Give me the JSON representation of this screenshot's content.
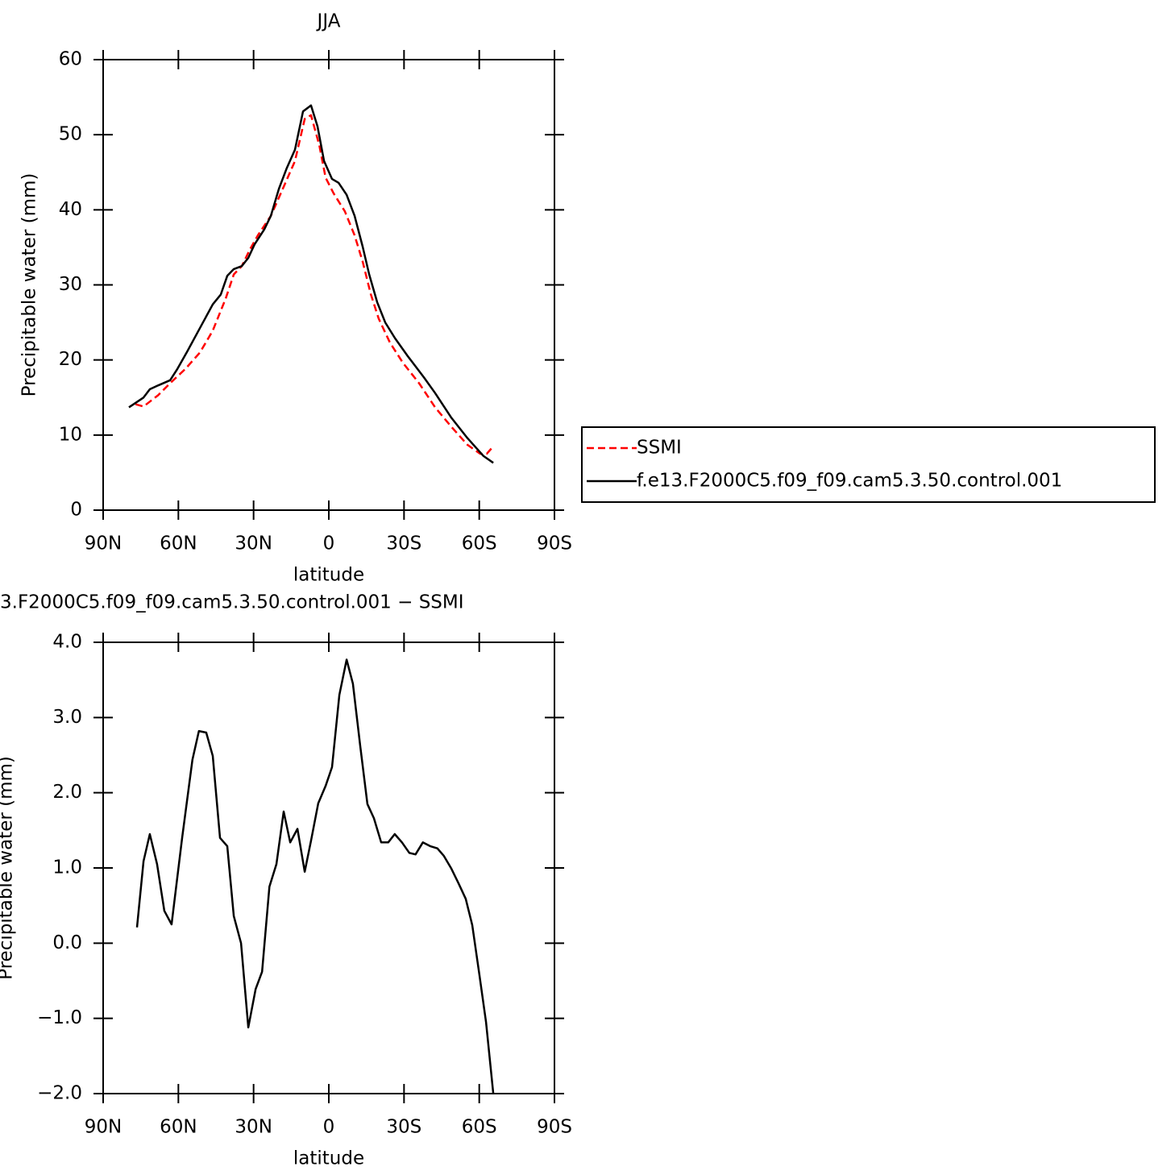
{
  "chart_data": [
    {
      "type": "line",
      "title": "JJA",
      "xlabel": "latitude",
      "ylabel": "Precipitable water (mm)",
      "xlim": [
        90,
        -90
      ],
      "xticks": [
        {
          "value": 90,
          "label": "90N"
        },
        {
          "value": 60,
          "label": "60N"
        },
        {
          "value": 30,
          "label": "30N"
        },
        0,
        {
          "value": -30,
          "label": "30S"
        },
        {
          "value": -60,
          "label": "60S"
        },
        {
          "value": -90,
          "label": "90S"
        }
      ],
      "ylim": [
        0,
        60
      ],
      "yticks": [
        0,
        10,
        20,
        30,
        40,
        50,
        60
      ],
      "legend": "right",
      "series": [
        {
          "name": "SSMI",
          "color": "#ff0000",
          "dash": "dashed",
          "x": [
            77.1,
            73.9,
            68.1,
            63.3,
            57.2,
            51.4,
            46.3,
            41.1,
            37.9,
            34.7,
            31.5,
            28.3,
            23.1,
            18.6,
            13.5,
            9.6,
            7.1,
            3.8,
            1.3,
            -1.9,
            -6.4,
            -10.3,
            -13.5,
            -16.7,
            -19.9,
            -24.4,
            -29.6,
            -36.0,
            -42.4,
            -48.9,
            -55.3,
            -60.4,
            -63.0,
            -65.6
          ],
          "values": [
            14.1,
            13.8,
            15.3,
            16.9,
            18.8,
            21.0,
            23.9,
            28.2,
            31.4,
            32.5,
            34.7,
            36.6,
            39.2,
            42.6,
            46.5,
            52.1,
            52.6,
            48.6,
            44.3,
            42.2,
            39.8,
            36.6,
            33.1,
            28.8,
            25.5,
            22.3,
            19.6,
            16.9,
            13.7,
            11.1,
            8.7,
            7.5,
            7.5,
            8.5
          ]
        },
        {
          "name": "f.e13.F2000C5.f09_f09.cam5.3.50.control.001",
          "color": "#000000",
          "dash": "solid",
          "x": [
            79.7,
            73.9,
            71.4,
            68.1,
            63.3,
            60.4,
            56.5,
            46.3,
            43.1,
            40.5,
            37.9,
            34.7,
            32.1,
            29.6,
            25.7,
            23.1,
            19.9,
            16.7,
            13.5,
            10.3,
            7.1,
            4.5,
            1.9,
            -1.3,
            -3.9,
            -7.1,
            -10.3,
            -13.5,
            -16.1,
            -19.3,
            -22.5,
            -26.4,
            -31.5,
            -37.9,
            -42.4,
            -48.9,
            -55.3,
            -61.7,
            -65.6
          ],
          "values": [
            13.7,
            15.0,
            16.1,
            16.6,
            17.3,
            18.8,
            21.1,
            27.4,
            28.7,
            31.2,
            32.1,
            32.5,
            33.6,
            35.4,
            37.4,
            39.2,
            42.8,
            45.6,
            48.0,
            53.1,
            53.9,
            51.1,
            46.5,
            44.1,
            43.6,
            42.0,
            39.2,
            35.1,
            31.4,
            27.7,
            25.0,
            22.9,
            20.5,
            17.7,
            15.6,
            12.3,
            9.6,
            7.2,
            6.3
          ]
        }
      ]
    },
    {
      "type": "line",
      "title": "3.F2000C5.f09_f09.cam5.3.50.control.001  −  SSMI",
      "xlabel": "latitude",
      "ylabel": "Precipitable water (mm)",
      "xlim": [
        90,
        -90
      ],
      "xticks": [
        {
          "value": 90,
          "label": "90N"
        },
        {
          "value": 60,
          "label": "60N"
        },
        {
          "value": 30,
          "label": "30N"
        },
        0,
        {
          "value": -30,
          "label": "30S"
        },
        {
          "value": -60,
          "label": "60S"
        },
        {
          "value": -90,
          "label": "90S"
        }
      ],
      "ylim": [
        -2,
        4
      ],
      "yticks": [
        {
          "value": -2,
          "label": "−2.0"
        },
        {
          "value": -1,
          "label": "−1.0"
        },
        {
          "value": 0,
          "label": "0.0"
        },
        {
          "value": 1,
          "label": "1.0"
        },
        {
          "value": 2,
          "label": "2.0"
        },
        {
          "value": 3,
          "label": "3.0"
        },
        {
          "value": 4,
          "label": "4.0"
        }
      ],
      "series": [
        {
          "color": "#000000",
          "dash": "solid",
          "x": [
            76.5,
            73.9,
            71.4,
            68.5,
            65.6,
            62.7,
            58.5,
            54.4,
            51.8,
            48.9,
            46.3,
            43.4,
            40.5,
            37.9,
            35.0,
            32.1,
            29.2,
            26.6,
            23.7,
            20.9,
            18.0,
            15.4,
            12.5,
            9.6,
            7.1,
            4.2,
            1.3,
            -1.3,
            -4.2,
            -7.1,
            -9.6,
            -12.5,
            -15.4,
            -18.0,
            -20.9,
            -23.7,
            -26.3,
            -29.2,
            -32.1,
            -34.6,
            -37.5,
            -40.4,
            -43.3,
            -45.9,
            -48.9,
            -51.8,
            -54.6,
            -57.2,
            -60.1,
            -62.7,
            -65.6
          ],
          "values": [
            0.21,
            1.09,
            1.45,
            1.05,
            0.43,
            0.25,
            1.4,
            2.44,
            2.82,
            2.8,
            2.49,
            1.4,
            1.29,
            0.36,
            0.0,
            -1.12,
            -0.61,
            -0.38,
            0.75,
            1.05,
            1.75,
            1.34,
            1.52,
            0.95,
            1.36,
            1.86,
            2.09,
            2.34,
            3.3,
            3.77,
            3.45,
            2.63,
            1.85,
            1.66,
            1.34,
            1.34,
            1.45,
            1.34,
            1.2,
            1.18,
            1.34,
            1.29,
            1.26,
            1.16,
            0.99,
            0.79,
            0.59,
            0.24,
            -0.43,
            -1.05,
            -2.0
          ]
        }
      ]
    }
  ]
}
